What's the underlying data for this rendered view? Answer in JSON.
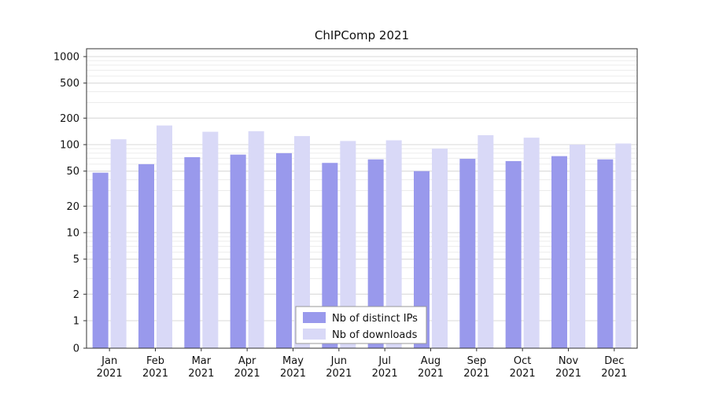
{
  "chart_data": {
    "type": "bar",
    "title": "ChIPComp 2021",
    "year_label": "2021",
    "categories": [
      "Jan",
      "Feb",
      "Mar",
      "Apr",
      "May",
      "Jun",
      "Jul",
      "Aug",
      "Sep",
      "Oct",
      "Nov",
      "Dec"
    ],
    "series": [
      {
        "name": "Nb of distinct IPs",
        "color": "#9999ec",
        "values": [
          48,
          60,
          72,
          77,
          80,
          62,
          68,
          50,
          69,
          65,
          74,
          68
        ]
      },
      {
        "name": "Nb of downloads",
        "color": "#d9d9f7",
        "values": [
          115,
          165,
          140,
          142,
          125,
          110,
          112,
          90,
          128,
          120,
          100,
          103
        ]
      }
    ],
    "y_ticks": [
      0,
      1,
      2,
      5,
      10,
      20,
      50,
      100,
      200,
      500,
      1000
    ],
    "y_scale": "log",
    "ylim": [
      0,
      1000
    ],
    "grid": "horizontal-minor",
    "legend_position": "bottom-center",
    "colors": {
      "axis": "#333333",
      "major_grid": "#d9d9d9",
      "minor_grid": "#ececec",
      "text": "#111111",
      "legend_border": "#999999",
      "legend_bg": "#ffffff"
    }
  }
}
